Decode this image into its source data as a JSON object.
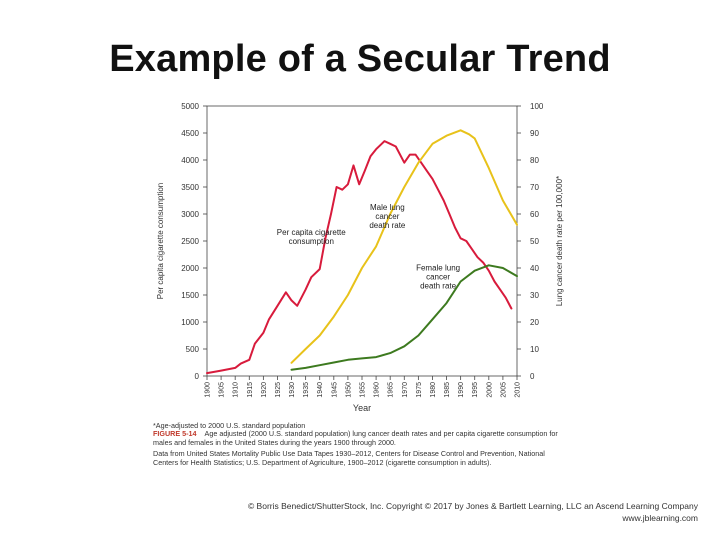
{
  "slide": {
    "title": "Example of a Secular Trend",
    "copyright_line1": "© Borris Benedict/ShutterStock, Inc. Copyright © 2017 by Jones & Bartlett Learning, LLC an Ascend Learning Company",
    "copyright_line2": "www.jblearning.com"
  },
  "figure": {
    "footnote": "*Age-adjusted to 2000 U.S. standard population",
    "label": "FIGURE 5-14",
    "caption": "Age adjusted (2000 U.S. standard population) lung cancer death rates and per capita cigarette consumption for males and females in the United States during the years 1900 through 2000.",
    "source": "Data from United States Mortality Public Use Data Tapes 1930–2012, Centers for Disease Control and Prevention, National Centers for Health Statistics; U.S. Department of Agriculture, 1900–2012 (cigarette consumption in adults)."
  },
  "chart_data": {
    "type": "line",
    "xlabel": "Year",
    "ylabel_left": "Per capita cigarette consumption",
    "ylabel_right": "Lung cancer death rate per 100,000*",
    "xlim": [
      1900,
      2010
    ],
    "ylim_left": [
      0,
      5000
    ],
    "ylim_right": [
      0,
      100
    ],
    "x_ticks": [
      1900,
      1905,
      1910,
      1915,
      1920,
      1925,
      1930,
      1935,
      1940,
      1945,
      1950,
      1955,
      1960,
      1965,
      1970,
      1975,
      1980,
      1985,
      1990,
      1995,
      2000,
      2005,
      2010
    ],
    "y_ticks_left": [
      0,
      500,
      1000,
      1500,
      2000,
      2500,
      3000,
      3500,
      4000,
      4500,
      5000
    ],
    "y_ticks_right": [
      0,
      10,
      20,
      30,
      40,
      50,
      60,
      70,
      80,
      90,
      100
    ],
    "series": [
      {
        "name": "Per capita cigarette consumption",
        "axis": "left",
        "color": "#d81b3c",
        "x": [
          1900,
          1905,
          1910,
          1912,
          1915,
          1917,
          1920,
          1922,
          1925,
          1928,
          1930,
          1932,
          1935,
          1937,
          1940,
          1942,
          1944,
          1946,
          1948,
          1950,
          1952,
          1954,
          1956,
          1958,
          1960,
          1962,
          1963,
          1965,
          1967,
          1970,
          1972,
          1974,
          1976,
          1978,
          1980,
          1982,
          1984,
          1986,
          1988,
          1990,
          1992,
          1994,
          1996,
          1998,
          2000,
          2002,
          2004,
          2006,
          2008
        ],
        "y": [
          54,
          100,
          150,
          230,
          300,
          600,
          800,
          1050,
          1300,
          1550,
          1400,
          1300,
          1600,
          1830,
          1980,
          2550,
          3000,
          3500,
          3450,
          3550,
          3900,
          3550,
          3800,
          4070,
          4200,
          4300,
          4350,
          4300,
          4250,
          3950,
          4100,
          4100,
          3950,
          3800,
          3650,
          3450,
          3250,
          3000,
          2750,
          2550,
          2500,
          2350,
          2200,
          2100,
          1950,
          1750,
          1600,
          1450,
          1250
        ]
      },
      {
        "name": "Male lung cancer death rate",
        "axis": "right",
        "color": "#e8c21a",
        "x": [
          1930,
          1935,
          1940,
          1945,
          1950,
          1955,
          1960,
          1965,
          1970,
          1975,
          1980,
          1985,
          1990,
          1993,
          1995,
          2000,
          2005,
          2010
        ],
        "y": [
          4.9,
          10,
          15,
          22,
          30,
          40,
          48,
          60,
          70,
          79,
          86,
          89,
          91,
          89.5,
          88,
          77,
          65,
          56
        ]
      },
      {
        "name": "Female lung cancer death rate",
        "axis": "right",
        "color": "#3d7a1f",
        "x": [
          1930,
          1935,
          1940,
          1945,
          1950,
          1955,
          1960,
          1965,
          1970,
          1975,
          1980,
          1985,
          1990,
          1995,
          2000,
          2005,
          2010
        ],
        "y": [
          2.3,
          3,
          4,
          5,
          6,
          6.5,
          7,
          8.5,
          11,
          15,
          21,
          27,
          35,
          39,
          41,
          40,
          37
        ]
      }
    ],
    "annotations": [
      {
        "text": [
          "Per capita cigarette",
          "consumption"
        ],
        "x": 1937,
        "y_left": 2610
      },
      {
        "text": [
          "Male lung",
          "cancer",
          "death rate"
        ],
        "x": 1964,
        "y_left": 3070
      },
      {
        "text": [
          "Female lung",
          "cancer",
          "death rate"
        ],
        "x": 1982,
        "y_left": 1950
      }
    ]
  }
}
